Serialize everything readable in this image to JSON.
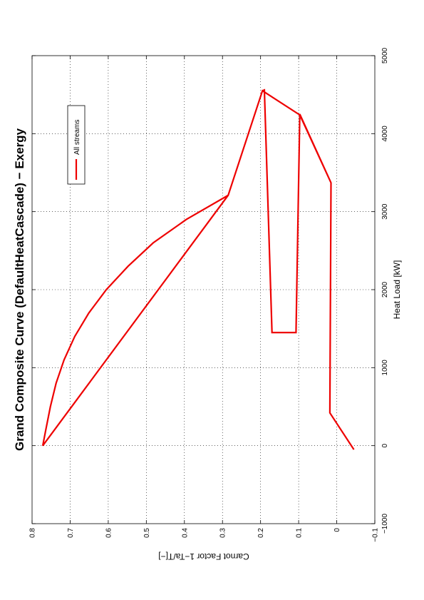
{
  "chart_data": {
    "type": "line",
    "title": "Grand Composite Curve (DefaultHeatCascade) − Exergy",
    "xlabel": "Heat Load [kW]",
    "ylabel": "Carnot Factor 1−Ta/T[−]",
    "xlim": [
      -1000,
      5000
    ],
    "ylim": [
      -0.1,
      0.8
    ],
    "xticks": [
      "−1000",
      "0",
      "1000",
      "2000",
      "3000",
      "4000",
      "5000"
    ],
    "yticks": [
      "−0.1",
      "0",
      "0.1",
      "0.2",
      "0.3",
      "0.4",
      "0.5",
      "0.6",
      "0.7",
      "0.8"
    ],
    "grid": true,
    "legend_position": "top-right",
    "color": "#ee0000",
    "series": [
      {
        "name": "All streams",
        "x": [
          -50,
          420,
          3370,
          4240,
          4550,
          3210,
          2900,
          2600,
          2300,
          2000,
          1700,
          1400,
          1100,
          800,
          500,
          200,
          0,
          3210,
          4550,
          4560,
          1450,
          1450,
          4250,
          3370
        ],
        "y": [
          -0.045,
          0.018,
          0.015,
          0.097,
          0.195,
          0.285,
          0.395,
          0.482,
          0.548,
          0.605,
          0.651,
          0.688,
          0.716,
          0.737,
          0.752,
          0.764,
          0.772,
          0.285,
          0.195,
          0.19,
          0.17,
          0.107,
          0.097,
          0.015
        ]
      }
    ]
  }
}
